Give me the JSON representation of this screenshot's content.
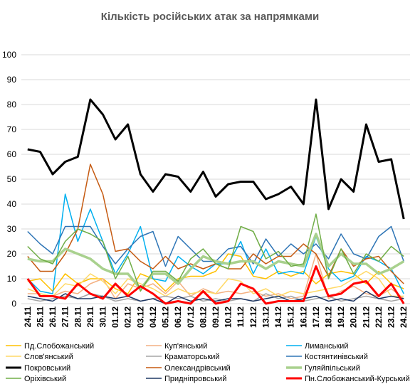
{
  "chart_data": {
    "type": "line",
    "title": "Кількість російських атак за напрямками",
    "ylim": [
      0,
      100
    ],
    "yticks": [
      0,
      10,
      20,
      30,
      40,
      50,
      60,
      70,
      80,
      90,
      100
    ],
    "grid": true,
    "legend_position": "bottom",
    "categories": [
      "24.11",
      "25.11",
      "26.11",
      "27.11",
      "28.11",
      "29.11",
      "30.11",
      "01.12",
      "02.12",
      "03.12",
      "04.12",
      "05.12",
      "06.12",
      "07.12",
      "08.12",
      "09.12",
      "10.12",
      "11.12",
      "12.12",
      "13.12",
      "14.12",
      "15.12",
      "16.12",
      "17.12",
      "18.12",
      "19.12",
      "20.12",
      "21.12",
      "22.12",
      "23.12",
      "24.12"
    ],
    "series": [
      {
        "name": "Пд.Слобожанський",
        "color": "#ffc000",
        "width": 1.5,
        "values": [
          9,
          10,
          5,
          12,
          8,
          10,
          10,
          6,
          4,
          12,
          10,
          5,
          10,
          11,
          11,
          13,
          20,
          19,
          11,
          10,
          13,
          11,
          13,
          8,
          12,
          13,
          12,
          8,
          13,
          8,
          6
        ]
      },
      {
        "name": "Куп'янський",
        "color": "#f4b183",
        "width": 1.5,
        "values": [
          4,
          4,
          3,
          5,
          4,
          8,
          10,
          2,
          8,
          6,
          8,
          4,
          9,
          3,
          6,
          4,
          5,
          4,
          5,
          3,
          4,
          2,
          3,
          20,
          2,
          5,
          7,
          4,
          3,
          6,
          2
        ]
      },
      {
        "name": "Лиманський",
        "color": "#00b0f0",
        "width": 1.5,
        "values": [
          10,
          5,
          4,
          44,
          25,
          38,
          25,
          12,
          20,
          31,
          10,
          9,
          19,
          15,
          12,
          16,
          16,
          25,
          12,
          22,
          12,
          13,
          12,
          27,
          14,
          9,
          11,
          19,
          17,
          14,
          4
        ]
      },
      {
        "name": "Слов'янський",
        "color": "#ffd966",
        "width": 1.5,
        "values": [
          6,
          4,
          3,
          8,
          7,
          12,
          9,
          4,
          10,
          8,
          6,
          3,
          6,
          4,
          5,
          4,
          10,
          9,
          4,
          6,
          3,
          5,
          4,
          5,
          6,
          7,
          10,
          13,
          10,
          3,
          3
        ]
      },
      {
        "name": "Краматорський",
        "color": "#a5a5a5",
        "width": 1.5,
        "values": [
          2,
          1,
          2,
          3,
          2,
          4,
          3,
          1,
          2,
          1,
          2,
          3,
          2,
          3,
          1,
          2,
          1,
          2,
          1,
          4,
          2,
          3,
          1,
          2,
          3,
          1,
          2,
          3,
          2,
          1,
          2
        ]
      },
      {
        "name": "Костянтинівський",
        "color": "#2e75b6",
        "width": 1.5,
        "values": [
          29,
          24,
          20,
          31,
          31,
          31,
          23,
          16,
          22,
          27,
          29,
          15,
          27,
          22,
          17,
          17,
          22,
          23,
          16,
          26,
          19,
          24,
          20,
          24,
          18,
          28,
          20,
          18,
          27,
          31,
          17
        ]
      },
      {
        "name": "Покровський",
        "color": "#000000",
        "width": 3,
        "values": [
          62,
          61,
          52,
          57,
          59,
          82,
          76,
          66,
          72,
          52,
          45,
          52,
          51,
          45,
          53,
          43,
          48,
          49,
          49,
          42,
          44,
          47,
          40,
          82,
          38,
          50,
          45,
          72,
          57,
          58,
          34
        ]
      },
      {
        "name": "Олександрівський",
        "color": "#c55a11",
        "width": 1.5,
        "values": [
          19,
          13,
          13,
          20,
          30,
          56,
          44,
          21,
          22,
          17,
          14,
          19,
          14,
          16,
          14,
          16,
          14,
          14,
          20,
          16,
          19,
          19,
          24,
          20,
          11,
          22,
          15,
          18,
          19,
          13,
          8
        ]
      },
      {
        "name": "Гуляйпільський",
        "color": "#a9d18e",
        "width": 3.5,
        "values": [
          18,
          17,
          17,
          22,
          20,
          18,
          14,
          12,
          12,
          6,
          12,
          12,
          8,
          14,
          19,
          17,
          16,
          17,
          17,
          14,
          17,
          16,
          15,
          28,
          15,
          20,
          16,
          16,
          12,
          14,
          17
        ]
      },
      {
        "name": "Оріхівський",
        "color": "#70ad47",
        "width": 1.5,
        "values": [
          23,
          18,
          16,
          25,
          30,
          28,
          25,
          10,
          19,
          5,
          13,
          13,
          9,
          18,
          22,
          16,
          14,
          31,
          29,
          18,
          21,
          15,
          16,
          36,
          10,
          22,
          12,
          20,
          17,
          23,
          19
        ]
      },
      {
        "name": "Придніпровський",
        "color": "#1f3864",
        "width": 1.5,
        "values": [
          3,
          2,
          1,
          4,
          2,
          2,
          3,
          2,
          3,
          1,
          2,
          0,
          3,
          1,
          2,
          1,
          2,
          2,
          1,
          2,
          3,
          1,
          2,
          3,
          1,
          2,
          1,
          5,
          2,
          3,
          2
        ]
      },
      {
        "name": "Пн.Слобожанський-Курський",
        "color": "#ff0000",
        "width": 3,
        "values": [
          10,
          3,
          3,
          2,
          8,
          4,
          2,
          8,
          3,
          7,
          4,
          0,
          1,
          0,
          5,
          0,
          1,
          8,
          6,
          0,
          1,
          1,
          1,
          15,
          3,
          4,
          8,
          9,
          3,
          8,
          0
        ]
      }
    ]
  }
}
